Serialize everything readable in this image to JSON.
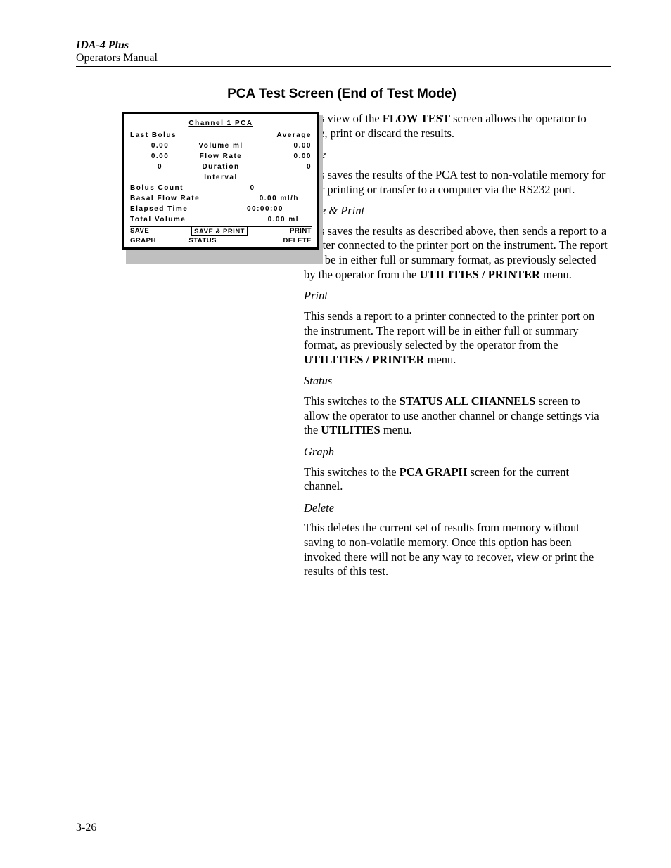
{
  "header": {
    "product": "IDA-4 Plus",
    "manual": "Operators Manual"
  },
  "section_title": "PCA Test Screen (End of Test Mode)",
  "screen": {
    "title": "Channel 1 PCA",
    "last_bolus_label": "Last Bolus",
    "average_label": "Average",
    "volume_label": "Volume ml",
    "flow_rate_label": "Flow Rate",
    "duration_label": "Duration",
    "interval_label": "Interval",
    "last_volume": "0.00",
    "avg_volume": "0.00",
    "last_flow": "0.00",
    "avg_flow": "0.00",
    "last_duration": "0",
    "avg_duration": "0",
    "bolus_count_label": "Bolus Count",
    "bolus_count": "0",
    "basal_flow_label": "Basal Flow Rate",
    "basal_flow": "0.00 ml/h",
    "elapsed_label": "Elapsed Time",
    "elapsed": "00:00:00",
    "total_volume_label": "Total Volume",
    "total_volume": "0.00 ml",
    "menu": {
      "save": "SAVE",
      "save_print": "SAVE & PRINT",
      "print": "PRINT",
      "graph": "GRAPH",
      "status": "STATUS",
      "delete": "DELETE"
    }
  },
  "body": {
    "intro_pre": "This view of the ",
    "intro_bold": "FLOW TEST",
    "intro_post": " screen allows the operator to save, print or discard the results.",
    "save_h": "Save",
    "save_t": "This saves the results of the PCA test to non-volatile memory for later printing or transfer to a computer via the RS232 port.",
    "sp_h": "Save & Print",
    "sp_pre": "This saves the results as described above, then sends a report to a printer connected to the printer port on the instrument. The report will be in either full or summary format, as previously selected by the operator from the ",
    "sp_bold": "UTILITIES / PRINTER",
    "sp_post": " menu.",
    "print_h": "Print",
    "print_pre": "This sends a report to a printer connected to the printer port on the instrument. The report will be in either full or summary format, as previously selected by the operator from the ",
    "print_bold": "UTILITIES / PRINTER",
    "print_post": " menu.",
    "status_h": "Status",
    "status_pre": "This switches to the ",
    "status_bold": "STATUS ALL CHANNELS",
    "status_mid": " screen to allow the operator to use another channel or change settings via the ",
    "status_bold2": "UTILITIES",
    "status_post": " menu.",
    "graph_h": "Graph",
    "graph_pre": "This switches to the ",
    "graph_bold": "PCA GRAPH",
    "graph_post": " screen for the current channel.",
    "delete_h": "Delete",
    "delete_t": "This deletes the current set of results from memory without saving to non-volatile memory. Once this option has been invoked there will not be any way to recover, view or print the results of this test."
  },
  "page_number": "3-26"
}
